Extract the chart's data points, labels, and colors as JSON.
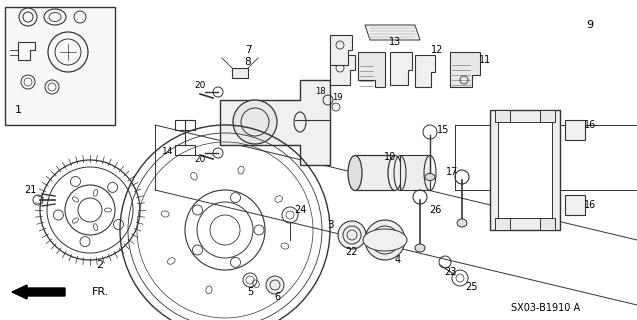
{
  "diagram_code": "SX03-B1910 A",
  "background_color": "#ffffff",
  "line_color": "#333333",
  "figsize": [
    6.37,
    3.2
  ],
  "dpi": 100,
  "xlim": [
    0,
    637
  ],
  "ylim": [
    0,
    320
  ]
}
